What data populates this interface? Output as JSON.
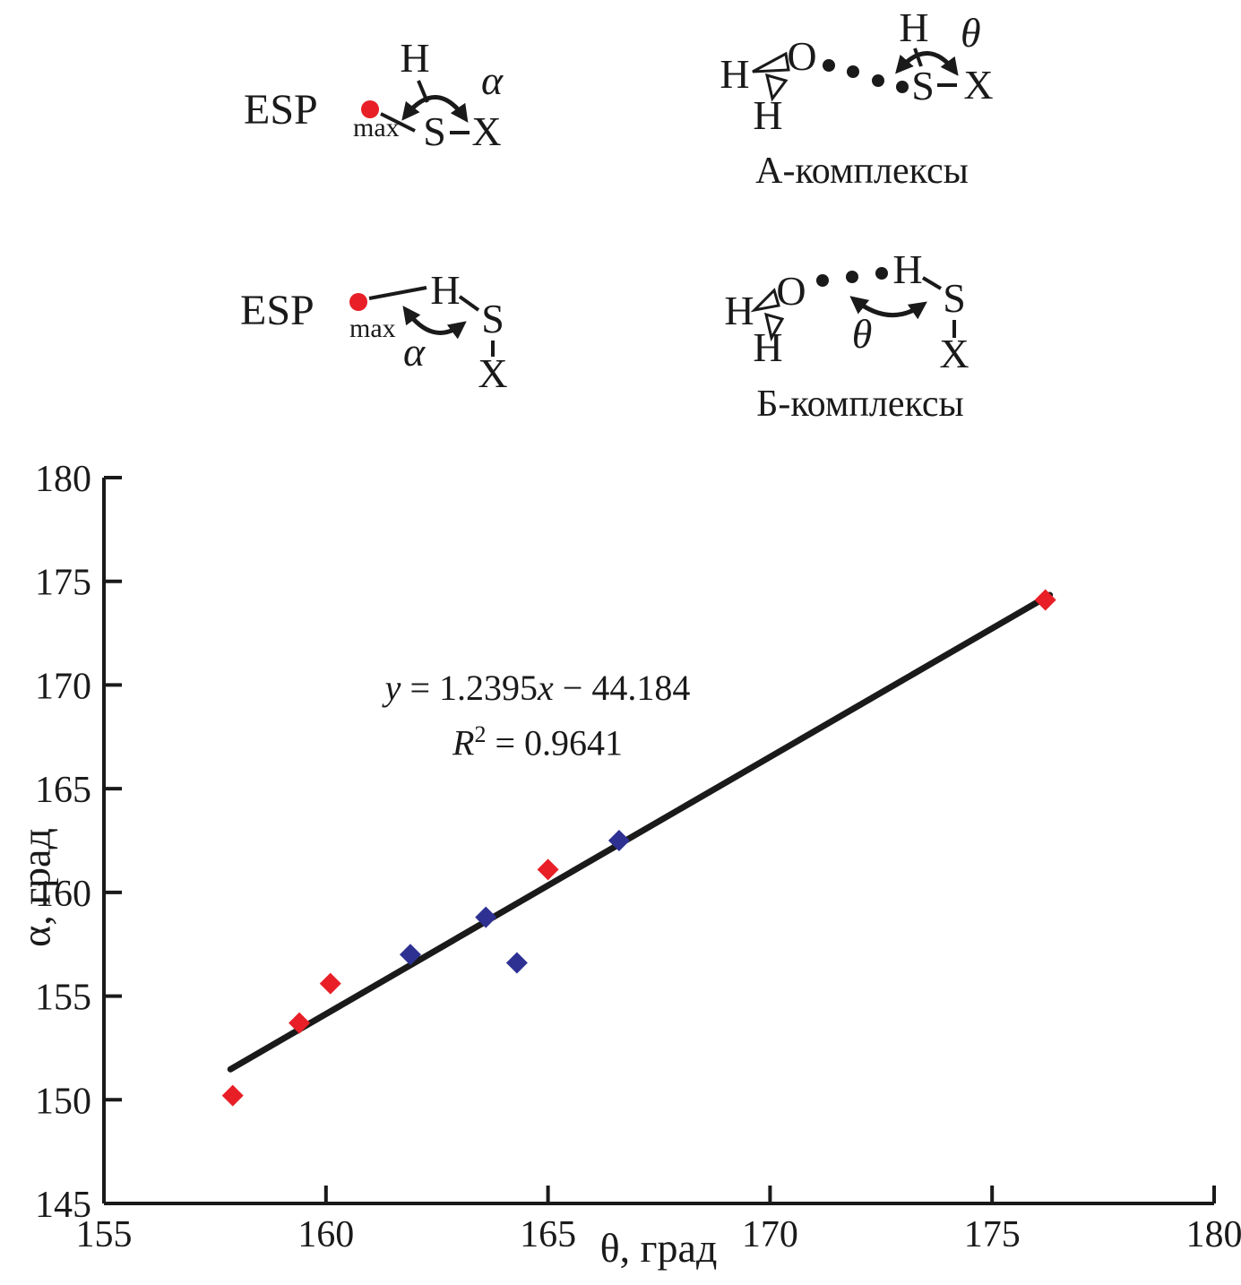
{
  "schemes": {
    "top_left": {
      "esp": "ESP",
      "esp_sub": "max",
      "dot_color": "#e81f27",
      "h": "H",
      "s": "S",
      "x": "X",
      "alpha": "α"
    },
    "top_right": {
      "h_left": "H",
      "h_bottom": "H",
      "o": "O",
      "h_top": "H",
      "s": "S",
      "x": "X",
      "theta": "θ",
      "caption": "А-комплексы"
    },
    "bottom_left": {
      "esp": "ESP",
      "esp_sub": "max",
      "dot_color": "#e81f27",
      "h": "H",
      "s": "S",
      "x": "X",
      "alpha": "α"
    },
    "bottom_right": {
      "h_left": "H",
      "h_bottom": "H",
      "o": "O",
      "h_top": "H",
      "s": "S",
      "x": "X",
      "theta": "θ",
      "caption": "Б-комплексы"
    }
  },
  "chart_data": {
    "type": "scatter",
    "xlabel": "θ, град",
    "ylabel": "α, град",
    "xlim": [
      155,
      180
    ],
    "ylim": [
      145,
      180
    ],
    "xticks": [
      155,
      160,
      165,
      170,
      175,
      180
    ],
    "yticks": [
      145,
      150,
      155,
      160,
      165,
      170,
      175,
      180
    ],
    "grid": false,
    "legend": "none",
    "series": [
      {
        "name": "red-diamonds",
        "color": "#e81f27",
        "marker": "diamond",
        "points": [
          [
            157.9,
            150.2
          ],
          [
            159.4,
            153.7
          ],
          [
            160.1,
            155.6
          ],
          [
            165.0,
            161.1
          ],
          [
            176.2,
            174.1
          ]
        ]
      },
      {
        "name": "blue-diamonds",
        "color": "#2e3192",
        "marker": "diamond",
        "points": [
          [
            161.9,
            157.0
          ],
          [
            163.6,
            158.8
          ],
          [
            164.3,
            156.6
          ],
          [
            166.6,
            162.5
          ]
        ]
      }
    ],
    "trendline": {
      "slope": 1.2395,
      "intercept": -44.184,
      "r_squared": 0.9641,
      "x_start": 157.85,
      "x_end": 176.3,
      "color": "#1a1a1a"
    },
    "annotation": {
      "line1": {
        "v1": "y",
        "mid": " = 1.2395",
        "v2": "x",
        "tail": " − 44.184"
      },
      "line2": {
        "r": "R",
        "sup": "2",
        "tail": " = 0.9641"
      }
    }
  }
}
